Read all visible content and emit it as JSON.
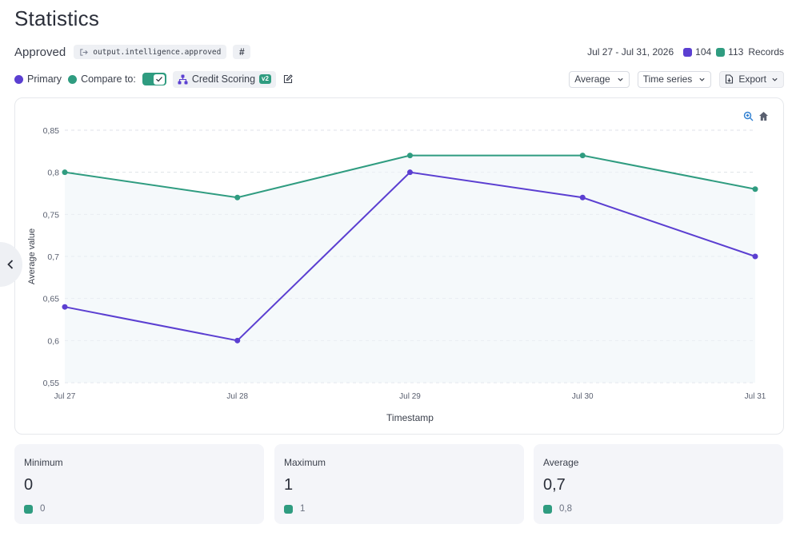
{
  "page": {
    "title": "Statistics"
  },
  "metric": {
    "name": "Approved",
    "key": "output.intelligence.approved",
    "type_chip": "#"
  },
  "summary": {
    "date_range": "Jul 27 - Jul 31, 2026",
    "primary_count": "104",
    "compare_count": "113",
    "records_label": "Records"
  },
  "controls": {
    "primary_label": "Primary",
    "compare_label": "Compare to:",
    "compare_enabled": true,
    "model_name": "Credit Scoring",
    "model_version": "v2",
    "aggregation": "Average",
    "view_mode": "Time series",
    "export_label": "Export"
  },
  "colors": {
    "primary": "#5b3fd1",
    "compare": "#2f9c80"
  },
  "chart_data": {
    "type": "line",
    "x": [
      "Jul 27",
      "Jul 28",
      "Jul 29",
      "Jul 30",
      "Jul 31"
    ],
    "series": [
      {
        "name": "Primary",
        "values": [
          0.64,
          0.6,
          0.8,
          0.77,
          0.7
        ],
        "color": "#5b3fd1"
      },
      {
        "name": "Compare",
        "values": [
          0.8,
          0.77,
          0.82,
          0.82,
          0.78
        ],
        "color": "#2f9c80"
      }
    ],
    "y_ticks": [
      "0,85",
      "0,8",
      "0,75",
      "0,7",
      "0,65",
      "0,6",
      "0,55"
    ],
    "ylim": [
      0.55,
      0.85
    ],
    "xlabel": "Timestamp",
    "ylabel": "Average value",
    "grid": true,
    "legend": "none"
  },
  "stats": [
    {
      "label": "Minimum",
      "value": "0",
      "compare_value": "0"
    },
    {
      "label": "Maximum",
      "value": "1",
      "compare_value": "1"
    },
    {
      "label": "Average",
      "value": "0,7",
      "compare_value": "0,8"
    }
  ]
}
